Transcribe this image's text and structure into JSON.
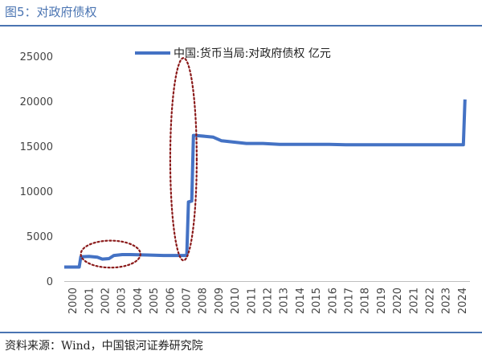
{
  "header": {
    "title": "图5：对政府债权"
  },
  "footer": {
    "source": "资料来源：Wind，中国银河证券研究院"
  },
  "chart_data": {
    "type": "line",
    "title": "",
    "xlabel": "",
    "ylabel": "",
    "legend": "top",
    "grid": false,
    "ylim": [
      0,
      25000
    ],
    "yticks": [
      "0",
      "5000",
      "10000",
      "15000",
      "20000",
      "25000"
    ],
    "xticks": [
      "2000",
      "2001",
      "2002",
      "2003",
      "2004",
      "2005",
      "2006",
      "2007",
      "2008",
      "2009",
      "2010",
      "2011",
      "2012",
      "2013",
      "2014",
      "2015",
      "2016",
      "2017",
      "2018",
      "2019",
      "2020",
      "2021",
      "2022",
      "2023",
      "2024"
    ],
    "colors": {
      "series": "#4472C4",
      "annotation": "#8B1A1A"
    },
    "series": [
      {
        "name": "中国:货币当局:对政府债权 亿元",
        "x": [
          2000.0,
          2000.9,
          2001.0,
          2001.5,
          2002.0,
          2002.3,
          2002.7,
          2003.0,
          2003.5,
          2004.0,
          2005.0,
          2006.0,
          2007.0,
          2007.4,
          2007.5,
          2007.7,
          2007.8,
          2007.9,
          2008.5,
          2009.0,
          2009.5,
          2010.0,
          2010.5,
          2011.0,
          2012.0,
          2013.0,
          2014.0,
          2015.0,
          2016.0,
          2017.0,
          2018.0,
          2019.0,
          2020.0,
          2021.0,
          2022.0,
          2023.0,
          2024.0,
          2024.1,
          2024.2
        ],
        "values": [
          1560,
          1560,
          2700,
          2750,
          2650,
          2450,
          2500,
          2850,
          2950,
          2950,
          2900,
          2850,
          2850,
          2850,
          8800,
          8900,
          16200,
          16200,
          16100,
          16000,
          15600,
          15500,
          15400,
          15300,
          15300,
          15200,
          15200,
          15200,
          15200,
          15150,
          15150,
          15150,
          15150,
          15150,
          15150,
          15150,
          15150,
          15150,
          20200
        ]
      }
    ],
    "annotations": [
      {
        "shape": "ellipse",
        "style": "dotted",
        "x_range": [
          2001.0,
          2004.6
        ],
        "y_range": [
          1500,
          4500
        ]
      },
      {
        "shape": "ellipse",
        "style": "dotted",
        "x_range": [
          2006.4,
          2008.0
        ],
        "y_range": [
          2300,
          24800
        ]
      }
    ]
  }
}
